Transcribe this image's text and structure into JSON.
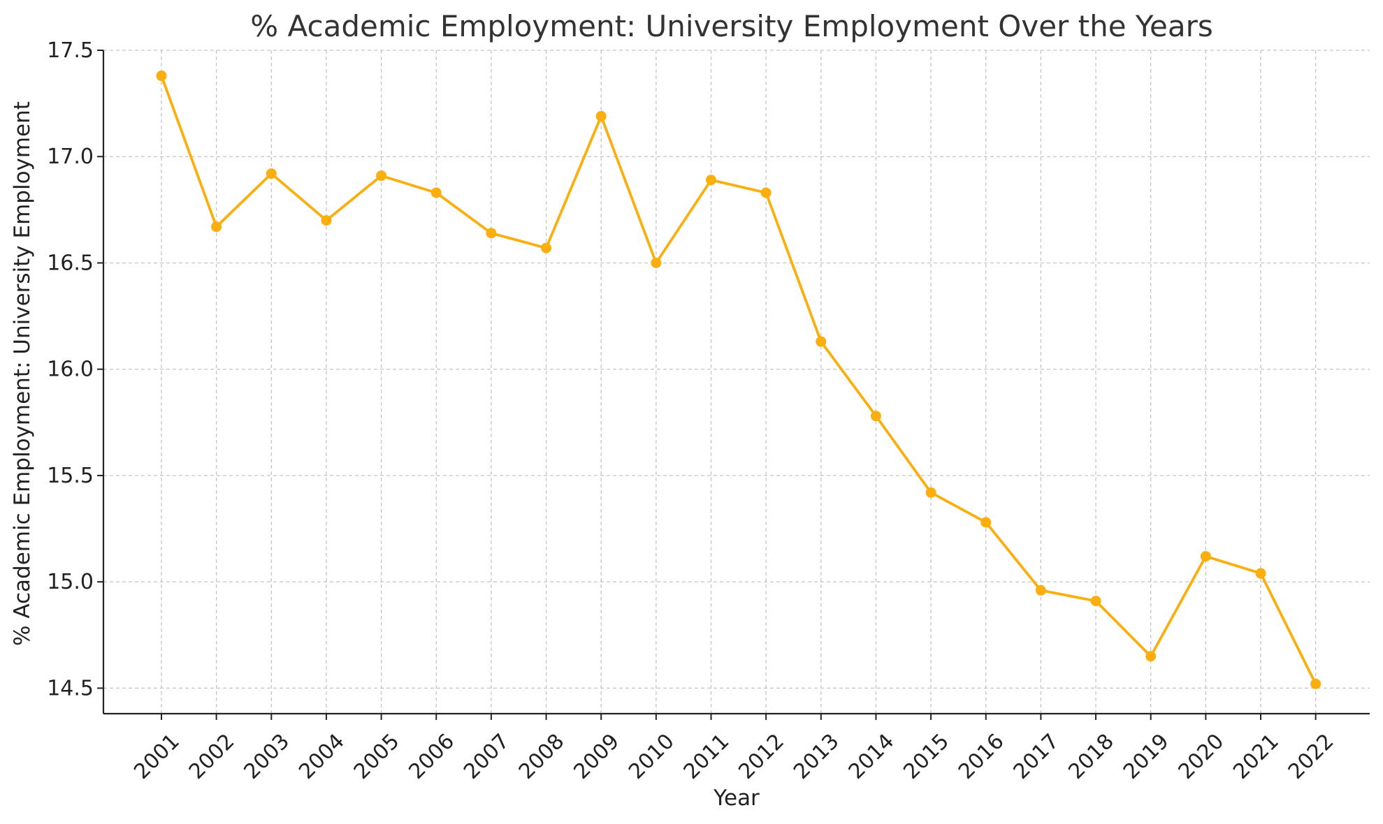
{
  "chart_data": {
    "type": "line",
    "title": "% Academic Employment: University Employment Over the Years",
    "xlabel": "Year",
    "ylabel": "% Academic Employment: University Employment",
    "x": [
      "2001",
      "2002",
      "2003",
      "2004",
      "2005",
      "2006",
      "2007",
      "2008",
      "2009",
      "2010",
      "2011",
      "2012",
      "2013",
      "2014",
      "2015",
      "2016",
      "2017",
      "2018",
      "2019",
      "2020",
      "2021",
      "2022"
    ],
    "series": [
      {
        "values": [
          17.38,
          16.67,
          16.92,
          16.7,
          16.91,
          16.83,
          16.64,
          16.57,
          17.19,
          16.5,
          16.89,
          16.83,
          16.13,
          15.78,
          15.42,
          15.28,
          14.96,
          14.91,
          14.65,
          15.12,
          15.04,
          14.52
        ],
        "color": "#FBAF0F",
        "marker": "circle"
      }
    ],
    "ylim": [
      14.38,
      17.5
    ],
    "yticks": [
      "14.5",
      "15.0",
      "15.5",
      "16.0",
      "16.5",
      "17.0",
      "17.5"
    ],
    "grid": true,
    "legend": "none"
  }
}
